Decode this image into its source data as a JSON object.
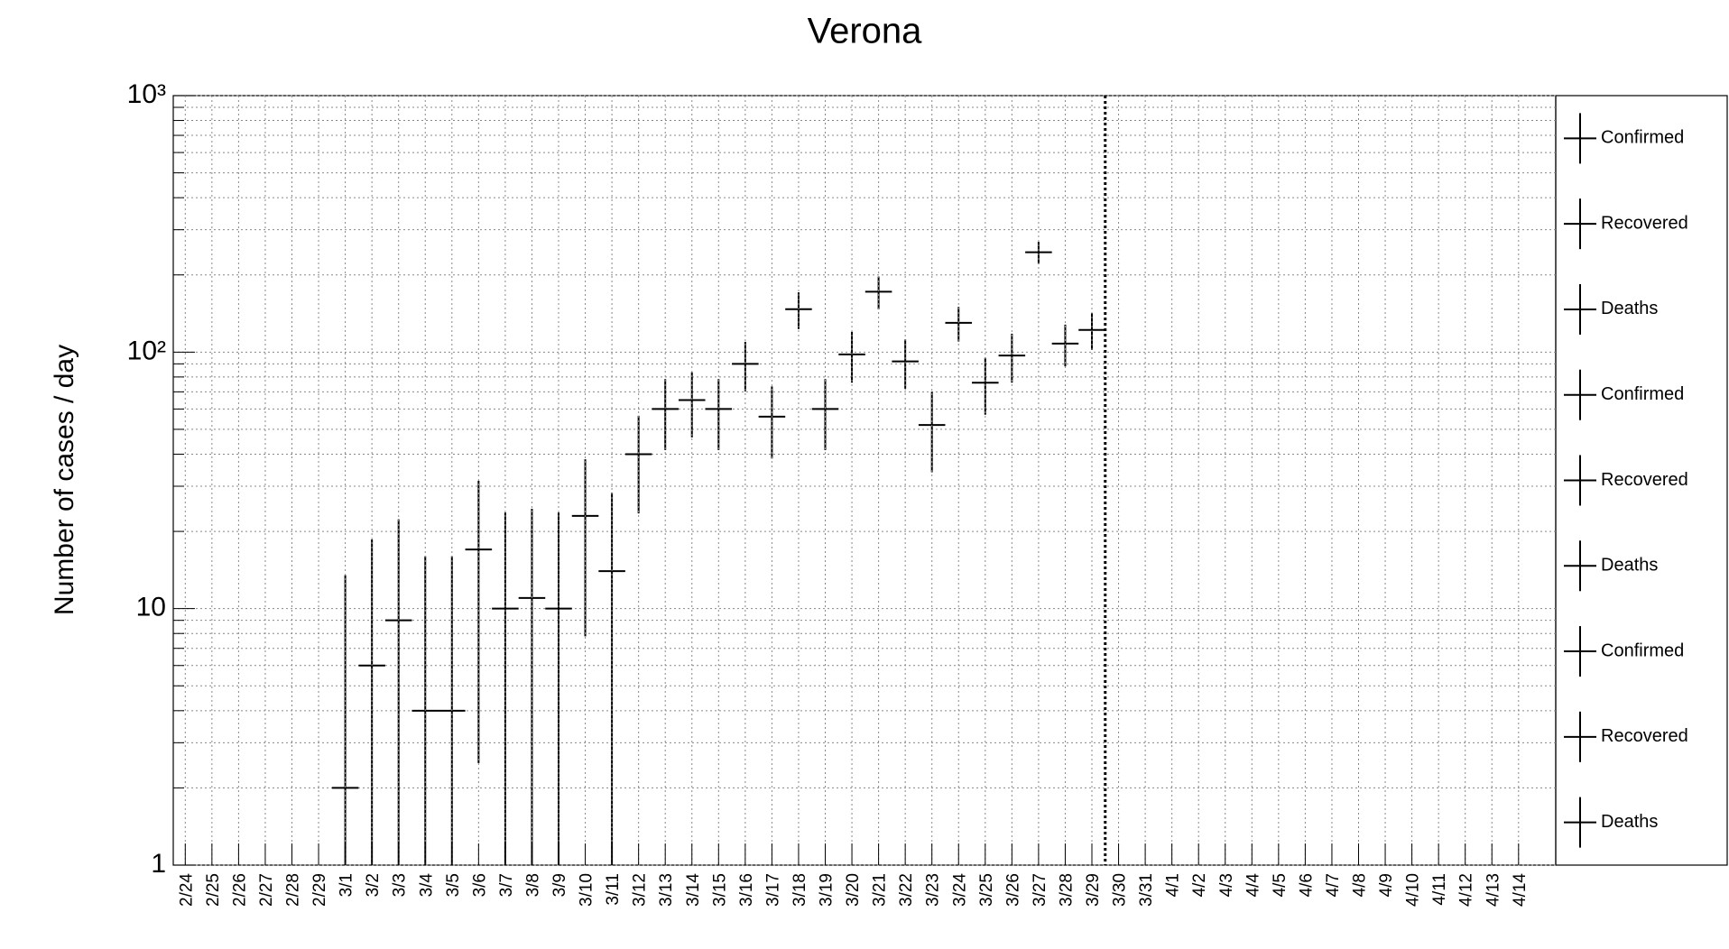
{
  "chart_data": {
    "type": "errorbar",
    "title": "Verona",
    "y_label": "Number of cases / day",
    "log_y": true,
    "grid": true,
    "color": "#000000",
    "categories": [
      "2/24",
      "2/25",
      "2/26",
      "2/27",
      "2/28",
      "2/29",
      "3/1",
      "3/2",
      "3/3",
      "3/4",
      "3/5",
      "3/6",
      "3/7",
      "3/8",
      "3/9",
      "3/10",
      "3/11",
      "3/12",
      "3/13",
      "3/14",
      "3/15",
      "3/16",
      "3/17",
      "3/18",
      "3/19",
      "3/20",
      "3/21",
      "3/22",
      "3/23",
      "3/24",
      "3/25",
      "3/26",
      "3/27",
      "3/28",
      "3/29",
      "3/30",
      "3/31",
      "4/1",
      "4/2",
      "4/3",
      "4/4",
      "4/5",
      "4/6",
      "4/7",
      "4/8",
      "4/9",
      "4/10",
      "4/11",
      "4/12",
      "4/13",
      "4/14"
    ],
    "values": [
      null,
      null,
      null,
      null,
      null,
      null,
      2,
      6,
      9,
      4,
      4,
      17,
      10,
      11,
      10,
      23,
      14,
      40,
      60,
      65,
      60,
      90,
      56,
      147,
      60,
      98,
      172,
      92,
      52,
      130,
      76,
      97,
      245,
      108,
      122,
      null,
      null,
      null,
      null,
      null,
      null,
      null,
      null,
      null,
      null,
      null,
      null,
      null,
      null,
      null,
      null
    ],
    "errors": [
      null,
      null,
      null,
      null,
      null,
      null,
      11.5,
      12.6,
      13.3,
      12,
      12,
      14.5,
      13.7,
      13.5,
      13.7,
      15.2,
      14.3,
      16.5,
      18.5,
      18.5,
      18.5,
      19.7,
      17.5,
      24,
      18.5,
      22,
      25,
      20,
      18,
      20,
      19,
      21,
      24,
      20,
      20,
      null,
      null,
      null,
      null,
      null,
      null,
      null,
      null,
      null,
      null,
      null,
      null,
      null,
      null,
      null,
      null
    ],
    "ylim": [
      1,
      1000
    ],
    "yticks": [
      1,
      10,
      {
        "value": 100,
        "label": "10²"
      },
      {
        "value": 1000,
        "label": "10³"
      }
    ],
    "yminorticks": [
      2,
      3,
      4,
      5,
      6,
      7,
      8,
      9,
      20,
      30,
      40,
      50,
      60,
      70,
      80,
      90,
      200,
      300,
      400,
      500,
      600,
      700,
      800,
      900
    ],
    "legend": [
      "Confirmed",
      "Recovered",
      "Deaths",
      "Confirmed",
      "Recovered",
      "Deaths",
      "Confirmed",
      "Recovered",
      "Deaths"
    ]
  }
}
